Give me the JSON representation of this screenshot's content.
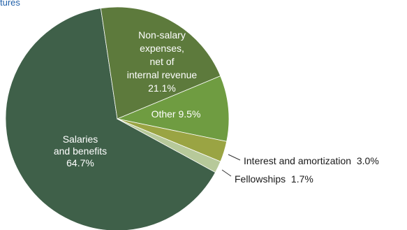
{
  "chart_data": {
    "type": "pie",
    "title": "tures",
    "slices": [
      {
        "label": "Salaries and benefits",
        "label_lines": [
          "Salaries",
          "and benefits",
          "64.7%"
        ],
        "value": 64.7,
        "value_label": "64.7%",
        "color": "#3f6049",
        "label_placement": "inside"
      },
      {
        "label": "Non-salary expenses, net of internal revenue",
        "label_lines": [
          "Non-salary",
          "expenses,",
          "net of",
          "internal revenue",
          "21.1%"
        ],
        "value": 21.1,
        "value_label": "21.1%",
        "color": "#5d7a3c",
        "label_placement": "inside"
      },
      {
        "label": "Other",
        "label_lines": [
          "Other  9.5%"
        ],
        "value": 9.5,
        "value_label": "9.5%",
        "color": "#6f9c41",
        "label_placement": "inside"
      },
      {
        "label": "Interest and amortization",
        "label_lines": [
          "Interest and amortization  3.0%"
        ],
        "value": 3.0,
        "value_label": "3.0%",
        "color": "#9aa443",
        "label_placement": "outside"
      },
      {
        "label": "Fellowships",
        "label_lines": [
          "Fellowships  1.7%"
        ],
        "value": 1.7,
        "value_label": "1.7%",
        "color": "#b7c99a",
        "label_placement": "outside"
      }
    ],
    "start_angle_deg": 98.5,
    "direction": "clockwise-from-salaries-end",
    "legend": "none"
  }
}
